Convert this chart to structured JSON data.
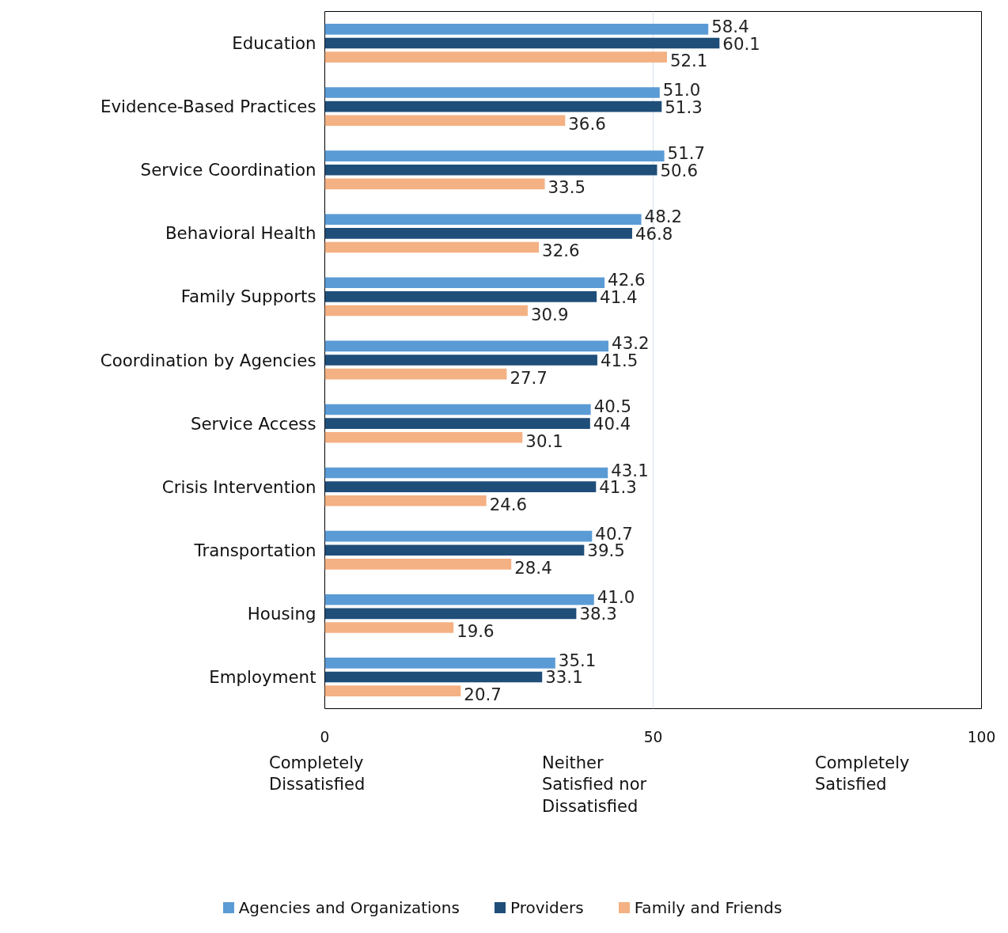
{
  "chart_data": {
    "type": "bar",
    "orientation": "horizontal",
    "categories": [
      "Education",
      "Evidence-Based Practices",
      "Service Coordination",
      "Behavioral Health",
      "Family Supports",
      "Coordination by Agencies",
      "Service Access",
      "Crisis Intervention",
      "Transportation",
      "Housing",
      "Employment"
    ],
    "series": [
      {
        "name": "Agencies and Organizations",
        "color": "#5b9bd5",
        "values": [
          58.4,
          51.0,
          51.7,
          48.2,
          42.6,
          43.2,
          40.5,
          43.1,
          40.7,
          41.0,
          35.1
        ],
        "value_labels": [
          "58.4",
          "51.0",
          "51.7",
          "48.2",
          "42.6",
          "43.2",
          "40.5",
          "43.1",
          "40.7",
          "41.0",
          "35.1"
        ]
      },
      {
        "name": "Providers",
        "color": "#1f4e79",
        "values": [
          60.1,
          51.3,
          50.6,
          46.8,
          41.4,
          41.5,
          40.4,
          41.3,
          39.5,
          38.3,
          33.1
        ],
        "value_labels": [
          "60.1",
          "51.3",
          "50.6",
          "46.8",
          "41.4",
          "41.5",
          "40.4",
          "41.3",
          "39.5",
          "38.3",
          "33.1"
        ]
      },
      {
        "name": "Family and Friends",
        "color": "#f4b183",
        "values": [
          52.1,
          36.6,
          33.5,
          32.6,
          30.9,
          27.7,
          30.1,
          24.6,
          28.4,
          19.6,
          20.7
        ],
        "value_labels": [
          "52.1",
          "36.6",
          "33.5",
          "32.6",
          "30.9",
          "27.7",
          "30.1",
          "24.6",
          "28.4",
          "19.6",
          "20.7"
        ]
      }
    ],
    "xlim": [
      0,
      100
    ],
    "xticks": [
      0,
      50,
      100
    ],
    "grid": "x",
    "legend": "bottom",
    "annotations": [
      "Completely\nDissatisfied",
      "Neither\nSatisfied nor\nDissatisfied",
      "Completely\nSatisfied"
    ]
  }
}
